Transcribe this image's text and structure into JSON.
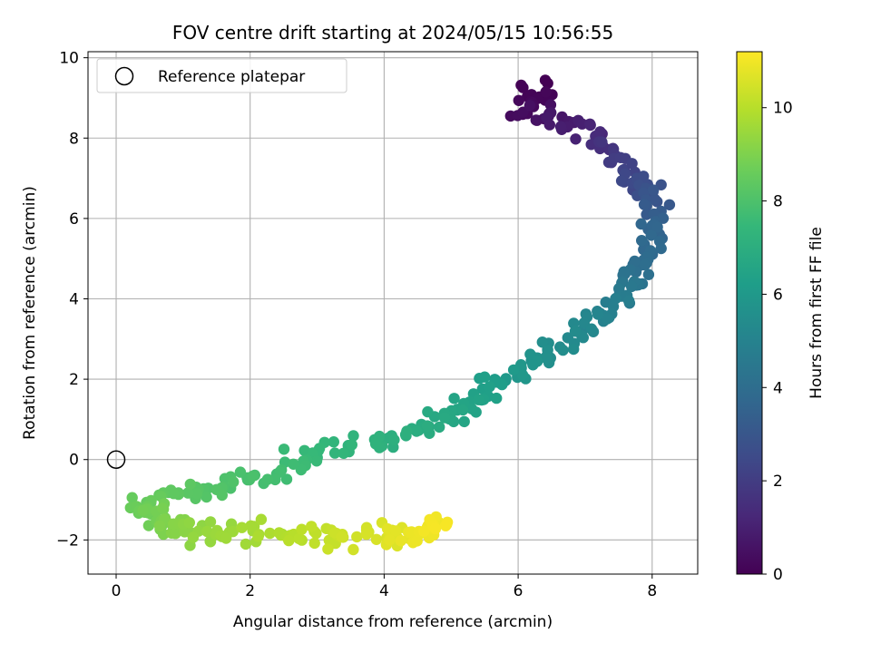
{
  "chart_data": {
    "type": "scatter",
    "title": "FOV centre drift starting at 2024/05/15 10:56:55",
    "xlabel": "Angular distance from reference (arcmin)",
    "ylabel": "Rotation from reference (arcmin)",
    "xlim": [
      -0.42,
      8.68
    ],
    "ylim": [
      -2.85,
      10.15
    ],
    "xticks": [
      0,
      2,
      4,
      6,
      8
    ],
    "yticks": [
      -2,
      0,
      2,
      4,
      6,
      8,
      10
    ],
    "xtick_labels": [
      "0",
      "2",
      "4",
      "6",
      "8"
    ],
    "ytick_labels": [
      "−2",
      "0",
      "2",
      "4",
      "6",
      "8",
      "10"
    ],
    "grid": true,
    "legend": {
      "position": "top-left",
      "entries": [
        "Reference platepar"
      ]
    },
    "reference_point": {
      "x": 0,
      "y": 0,
      "label": "Reference platepar"
    },
    "colorbar": {
      "label": "Hours from first FF file",
      "colormap": "viridis",
      "range": [
        0,
        11.2
      ],
      "ticks": [
        0,
        2,
        4,
        6,
        8,
        10
      ],
      "tick_labels": [
        "0",
        "2",
        "4",
        "6",
        "8",
        "10"
      ]
    },
    "path_keypoints": [
      {
        "x": 6.3,
        "y": 9.3,
        "hours": 0.0
      },
      {
        "x": 6.1,
        "y": 8.7,
        "hours": 0.3
      },
      {
        "x": 6.9,
        "y": 8.3,
        "hours": 1.0
      },
      {
        "x": 7.5,
        "y": 7.4,
        "hours": 2.0
      },
      {
        "x": 7.9,
        "y": 6.7,
        "hours": 2.8
      },
      {
        "x": 8.1,
        "y": 5.7,
        "hours": 3.6
      },
      {
        "x": 7.8,
        "y": 4.9,
        "hours": 4.0
      },
      {
        "x": 7.6,
        "y": 4.1,
        "hours": 4.6
      },
      {
        "x": 7.0,
        "y": 3.3,
        "hours": 5.2
      },
      {
        "x": 6.3,
        "y": 2.5,
        "hours": 5.6
      },
      {
        "x": 5.7,
        "y": 1.9,
        "hours": 6.2
      },
      {
        "x": 5.1,
        "y": 1.2,
        "hours": 6.6
      },
      {
        "x": 4.3,
        "y": 0.6,
        "hours": 7.0
      },
      {
        "x": 3.2,
        "y": 0.2,
        "hours": 7.4
      },
      {
        "x": 2.3,
        "y": -0.4,
        "hours": 7.8
      },
      {
        "x": 1.2,
        "y": -0.8,
        "hours": 8.2
      },
      {
        "x": 0.3,
        "y": -1.1,
        "hours": 8.6
      },
      {
        "x": 0.6,
        "y": -1.5,
        "hours": 8.9
      },
      {
        "x": 1.2,
        "y": -1.8,
        "hours": 9.3
      },
      {
        "x": 2.1,
        "y": -1.8,
        "hours": 9.7
      },
      {
        "x": 3.1,
        "y": -1.9,
        "hours": 10.2
      },
      {
        "x": 4.0,
        "y": -1.9,
        "hours": 10.6
      },
      {
        "x": 4.5,
        "y": -1.85,
        "hours": 10.9
      },
      {
        "x": 4.9,
        "y": -1.6,
        "hours": 11.1
      }
    ],
    "point_count": 460
  }
}
